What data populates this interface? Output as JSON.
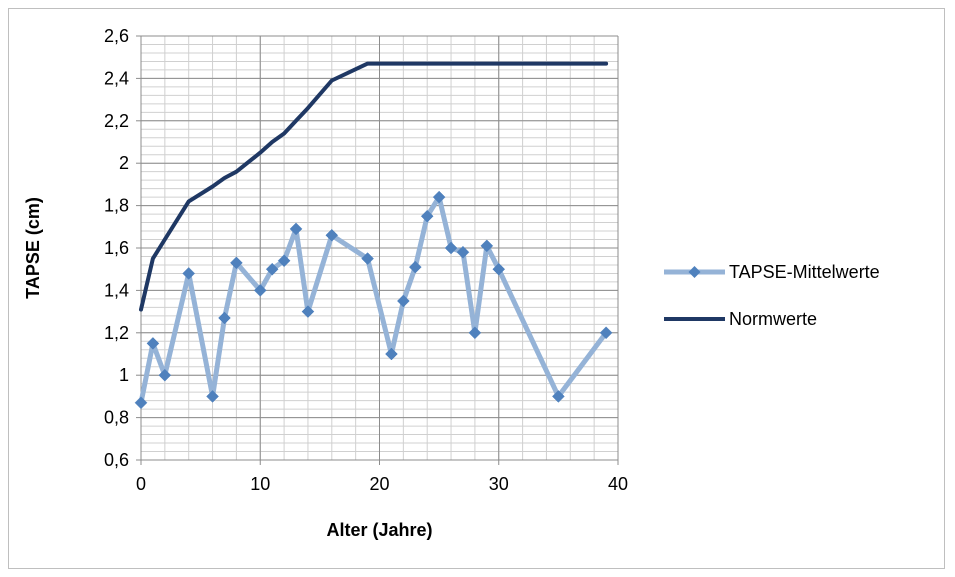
{
  "chart_data": {
    "type": "line",
    "xlabel": "Alter (Jahre)",
    "ylabel": "TAPSE (cm)",
    "xlim": [
      0,
      40
    ],
    "ylim": [
      0.6,
      2.6
    ],
    "x_ticks": [
      0,
      10,
      20,
      30,
      40
    ],
    "x_tick_labels": [
      "0",
      "10",
      "20",
      "30",
      "40"
    ],
    "y_ticks": [
      0.6,
      0.8,
      1.0,
      1.2,
      1.4,
      1.6,
      1.8,
      2.0,
      2.2,
      2.4,
      2.6
    ],
    "y_tick_labels": [
      "0,6",
      "0,8",
      "1",
      "1,2",
      "1,4",
      "1,6",
      "1,8",
      "2",
      "2,2",
      "2,4",
      "2,6"
    ],
    "grid": true,
    "legend_position": "right",
    "series": [
      {
        "name": "TAPSE-Mittelwerte",
        "color": "#95b3d7",
        "marker_color": "#4f81bd",
        "marker": "diamond",
        "x": [
          0,
          1,
          2,
          4,
          6,
          7,
          8,
          10,
          11,
          12,
          13,
          14,
          16,
          19,
          21,
          22,
          23,
          24,
          25,
          26,
          27,
          28,
          29,
          30,
          35,
          39
        ],
        "y": [
          0.87,
          1.15,
          1.0,
          1.48,
          0.9,
          1.27,
          1.53,
          1.4,
          1.5,
          1.54,
          1.69,
          1.3,
          1.66,
          1.55,
          1.1,
          1.35,
          1.51,
          1.75,
          1.84,
          1.6,
          1.58,
          1.2,
          1.61,
          1.5,
          0.9,
          1.2
        ]
      },
      {
        "name": "Normwerte",
        "color": "#1f3864",
        "marker": "none",
        "x": [
          0,
          1,
          2,
          4,
          6,
          7,
          8,
          10,
          11,
          12,
          13,
          14,
          16,
          19,
          21,
          22,
          23,
          24,
          25,
          26,
          27,
          28,
          29,
          30,
          35,
          39
        ],
        "y": [
          1.31,
          1.55,
          1.64,
          1.82,
          1.89,
          1.93,
          1.96,
          2.05,
          2.1,
          2.14,
          2.2,
          2.26,
          2.39,
          2.47,
          2.47,
          2.47,
          2.47,
          2.47,
          2.47,
          2.47,
          2.47,
          2.47,
          2.47,
          2.47,
          2.47,
          2.47
        ]
      }
    ]
  }
}
